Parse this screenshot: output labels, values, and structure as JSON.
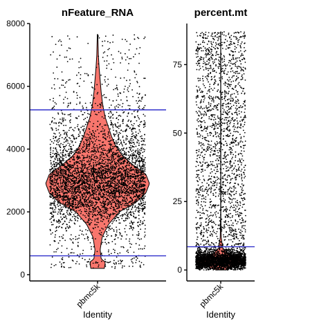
{
  "chart_data": [
    {
      "type": "violin",
      "title": "nFeature_RNA",
      "xlabel": "Identity",
      "ylabel": "",
      "categories": [
        "pbmc5k"
      ],
      "ylim": [
        -200,
        8000
      ],
      "yticks": [
        0,
        2000,
        4000,
        6000,
        8000
      ],
      "data_range": [
        200,
        7650
      ],
      "n_points": 4500,
      "threshold_lines": [
        5250,
        600
      ],
      "violin_profile": [
        {
          "y": 200,
          "density": 0.13
        },
        {
          "y": 400,
          "density": 0.15
        },
        {
          "y": 500,
          "density": 0.07
        },
        {
          "y": 800,
          "density": 0.05
        },
        {
          "y": 1200,
          "density": 0.09
        },
        {
          "y": 1600,
          "density": 0.21
        },
        {
          "y": 2000,
          "density": 0.42
        },
        {
          "y": 2300,
          "density": 0.74
        },
        {
          "y": 2600,
          "density": 0.93
        },
        {
          "y": 2900,
          "density": 1.0
        },
        {
          "y": 3200,
          "density": 0.93
        },
        {
          "y": 3500,
          "density": 0.68
        },
        {
          "y": 3800,
          "density": 0.47
        },
        {
          "y": 4100,
          "density": 0.35
        },
        {
          "y": 4400,
          "density": 0.27
        },
        {
          "y": 4700,
          "density": 0.21
        },
        {
          "y": 5000,
          "density": 0.15
        },
        {
          "y": 5400,
          "density": 0.1
        },
        {
          "y": 5800,
          "density": 0.07
        },
        {
          "y": 6200,
          "density": 0.05
        },
        {
          "y": 6600,
          "density": 0.03
        },
        {
          "y": 7000,
          "density": 0.015
        },
        {
          "y": 7650,
          "density": 0.005
        }
      ]
    },
    {
      "type": "violin",
      "title": "percent.mt",
      "xlabel": "Identity",
      "ylabel": "",
      "categories": [
        "pbmc5k"
      ],
      "ylim": [
        -4,
        90
      ],
      "yticks": [
        0,
        25,
        50,
        75
      ],
      "data_range": [
        0,
        87
      ],
      "n_points": 4500,
      "threshold_lines": [
        8.5
      ],
      "violin_profile": [
        {
          "y": 0,
          "density": 0.2
        },
        {
          "y": 1.5,
          "density": 0.6
        },
        {
          "y": 3,
          "density": 1.0
        },
        {
          "y": 4.5,
          "density": 0.75
        },
        {
          "y": 6,
          "density": 0.3
        },
        {
          "y": 8,
          "density": 0.08
        },
        {
          "y": 12,
          "density": 0.02
        },
        {
          "y": 20,
          "density": 0.005
        },
        {
          "y": 87,
          "density": 0.003
        }
      ]
    }
  ],
  "colors": {
    "violin_fill": "#f8766d",
    "violin_stroke": "#000000",
    "points": "#000000",
    "threshold_line": "#3333cc"
  }
}
